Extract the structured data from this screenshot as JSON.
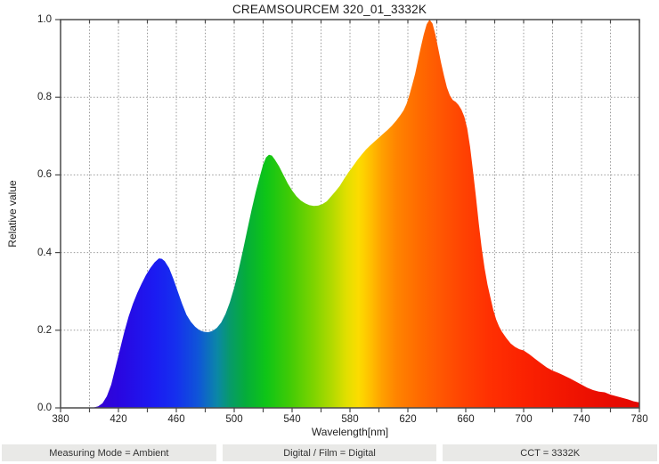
{
  "title": "CREAMSOURCEM 320_01_3332K",
  "status_bar": {
    "measuring_mode": "Measuring Mode = Ambient",
    "digital_film": "Digital / Film = Digital",
    "cct": "CCT = 3332K"
  },
  "colors": {
    "background": "#ffffff",
    "axis": "#4a4a4a",
    "grid": "#9a9a9a",
    "status_bg": "#e9e9e7",
    "status_text": "#333333",
    "text": "#222222"
  },
  "chart_data": {
    "type": "area",
    "title": "CREAMSOURCEM 320_01_3332K",
    "xlabel": "Wavelength[nm]",
    "ylabel": "Relative value",
    "xlim": [
      380,
      780
    ],
    "ylim": [
      0.0,
      1.0
    ],
    "grid": "dotted",
    "x_tick_labels": [
      "380",
      "420",
      "460",
      "500",
      "540",
      "580",
      "620",
      "660",
      "700",
      "740",
      "780"
    ],
    "x_tick_values": [
      380,
      420,
      460,
      500,
      540,
      580,
      620,
      660,
      700,
      740,
      780
    ],
    "x_minor_step": 20,
    "y_tick_labels": [
      "0.0",
      "0.2",
      "0.4",
      "0.6",
      "0.8",
      "1.0"
    ],
    "y_tick_values": [
      0.0,
      0.2,
      0.4,
      0.6,
      0.8,
      1.0
    ],
    "series": [
      {
        "name": "relative spectral power",
        "points": [
          [
            380,
            0
          ],
          [
            400,
            0
          ],
          [
            403,
            0.001
          ],
          [
            406,
            0.004
          ],
          [
            409,
            0.012
          ],
          [
            412,
            0.03
          ],
          [
            415,
            0.06
          ],
          [
            418,
            0.105
          ],
          [
            421,
            0.15
          ],
          [
            424,
            0.195
          ],
          [
            427,
            0.235
          ],
          [
            430,
            0.268
          ],
          [
            433,
            0.296
          ],
          [
            436,
            0.32
          ],
          [
            439,
            0.342
          ],
          [
            442,
            0.36
          ],
          [
            445,
            0.375
          ],
          [
            448,
            0.385
          ],
          [
            450,
            0.384
          ],
          [
            452,
            0.378
          ],
          [
            455,
            0.36
          ],
          [
            458,
            0.332
          ],
          [
            461,
            0.3
          ],
          [
            464,
            0.268
          ],
          [
            467,
            0.24
          ],
          [
            470,
            0.222
          ],
          [
            473,
            0.209
          ],
          [
            476,
            0.2
          ],
          [
            479,
            0.196
          ],
          [
            482,
            0.195
          ],
          [
            485,
            0.198
          ],
          [
            488,
            0.206
          ],
          [
            491,
            0.22
          ],
          [
            494,
            0.242
          ],
          [
            497,
            0.272
          ],
          [
            500,
            0.31
          ],
          [
            503,
            0.355
          ],
          [
            506,
            0.405
          ],
          [
            509,
            0.458
          ],
          [
            512,
            0.51
          ],
          [
            515,
            0.558
          ],
          [
            518,
            0.6
          ],
          [
            520,
            0.627
          ],
          [
            522,
            0.645
          ],
          [
            524,
            0.652
          ],
          [
            526,
            0.65
          ],
          [
            528,
            0.64
          ],
          [
            531,
            0.622
          ],
          [
            534,
            0.6
          ],
          [
            537,
            0.578
          ],
          [
            540,
            0.56
          ],
          [
            543,
            0.545
          ],
          [
            546,
            0.534
          ],
          [
            549,
            0.527
          ],
          [
            552,
            0.522
          ],
          [
            555,
            0.52
          ],
          [
            558,
            0.521
          ],
          [
            561,
            0.525
          ],
          [
            564,
            0.532
          ],
          [
            567,
            0.545
          ],
          [
            570,
            0.558
          ],
          [
            573,
            0.572
          ],
          [
            576,
            0.59
          ],
          [
            579,
            0.607
          ],
          [
            582,
            0.622
          ],
          [
            585,
            0.638
          ],
          [
            588,
            0.652
          ],
          [
            591,
            0.665
          ],
          [
            594,
            0.676
          ],
          [
            597,
            0.686
          ],
          [
            600,
            0.696
          ],
          [
            603,
            0.706
          ],
          [
            606,
            0.716
          ],
          [
            609,
            0.727
          ],
          [
            612,
            0.74
          ],
          [
            615,
            0.755
          ],
          [
            617,
            0.766
          ],
          [
            619,
            0.782
          ],
          [
            621,
            0.805
          ],
          [
            623,
            0.832
          ],
          [
            625,
            0.86
          ],
          [
            627,
            0.895
          ],
          [
            629,
            0.93
          ],
          [
            631,
            0.962
          ],
          [
            633,
            0.988
          ],
          [
            635,
            1.0
          ],
          [
            637,
            0.99
          ],
          [
            639,
            0.962
          ],
          [
            641,
            0.925
          ],
          [
            643,
            0.888
          ],
          [
            645,
            0.855
          ],
          [
            647,
            0.825
          ],
          [
            649,
            0.805
          ],
          [
            651,
            0.793
          ],
          [
            653,
            0.788
          ],
          [
            655,
            0.78
          ],
          [
            657,
            0.768
          ],
          [
            659,
            0.75
          ],
          [
            661,
            0.72
          ],
          [
            663,
            0.672
          ],
          [
            665,
            0.61
          ],
          [
            667,
            0.545
          ],
          [
            669,
            0.475
          ],
          [
            671,
            0.412
          ],
          [
            673,
            0.36
          ],
          [
            675,
            0.318
          ],
          [
            677,
            0.285
          ],
          [
            679,
            0.253
          ],
          [
            681,
            0.228
          ],
          [
            683,
            0.21
          ],
          [
            685,
            0.196
          ],
          [
            688,
            0.18
          ],
          [
            691,
            0.166
          ],
          [
            694,
            0.157
          ],
          [
            697,
            0.151
          ],
          [
            700,
            0.148
          ],
          [
            704,
            0.138
          ],
          [
            708,
            0.126
          ],
          [
            712,
            0.115
          ],
          [
            716,
            0.104
          ],
          [
            720,
            0.096
          ],
          [
            724,
            0.09
          ],
          [
            728,
            0.083
          ],
          [
            732,
            0.076
          ],
          [
            736,
            0.068
          ],
          [
            740,
            0.06
          ],
          [
            744,
            0.052
          ],
          [
            748,
            0.046
          ],
          [
            752,
            0.042
          ],
          [
            756,
            0.04
          ],
          [
            760,
            0.034
          ],
          [
            764,
            0.03
          ],
          [
            768,
            0.026
          ],
          [
            772,
            0.022
          ],
          [
            776,
            0.017
          ],
          [
            780,
            0.014
          ]
        ]
      }
    ],
    "fill": "wavelength-spectrum-gradient",
    "gradient_stops": [
      [
        380,
        "#4400bb"
      ],
      [
        420,
        "#2a06e0"
      ],
      [
        445,
        "#1b1bf2"
      ],
      [
        460,
        "#1530ee"
      ],
      [
        475,
        "#0f55d8"
      ],
      [
        488,
        "#0b86a8"
      ],
      [
        497,
        "#079a6a"
      ],
      [
        508,
        "#05ad3a"
      ],
      [
        522,
        "#0ec517"
      ],
      [
        538,
        "#3fcb06"
      ],
      [
        555,
        "#7ed400"
      ],
      [
        568,
        "#b4da00"
      ],
      [
        578,
        "#e3df00"
      ],
      [
        586,
        "#fcdc00"
      ],
      [
        594,
        "#ffc000"
      ],
      [
        602,
        "#ffa000"
      ],
      [
        612,
        "#ff8400"
      ],
      [
        628,
        "#ff6a00"
      ],
      [
        640,
        "#ff5a02"
      ],
      [
        658,
        "#ff4302"
      ],
      [
        675,
        "#ff3102"
      ],
      [
        700,
        "#fb2201"
      ],
      [
        730,
        "#f11501"
      ],
      [
        760,
        "#e80b01"
      ],
      [
        780,
        "#e40801"
      ]
    ],
    "legend": "none"
  }
}
